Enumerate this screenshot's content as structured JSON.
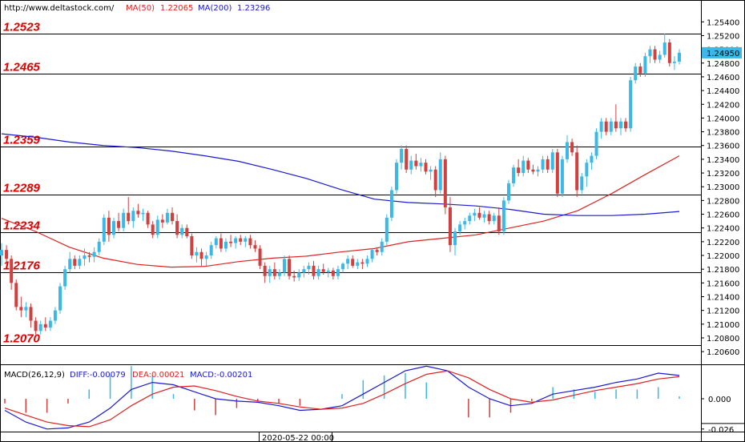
{
  "header": {
    "site": "http://www.deltastock.com/",
    "ma50_label": "MA(50)",
    "ma50_value": "1.22065",
    "ma200_label": "MA(200)",
    "ma200_value": "1.23296"
  },
  "macd_header": {
    "name": "MACD(26,12,9)",
    "diff": "DIFF:-0.00079",
    "dea": "DEA:0.00021",
    "macd": "MACD:-0.00201"
  },
  "colors": {
    "up": "#3cb8e8",
    "down": "#d04040",
    "ma50": "#e02020",
    "ma200": "#1a1ad0",
    "level_text": "#e00000",
    "price_tag": "#3cb8e8"
  },
  "footer": {
    "date_label": "2020-05-22 00:00"
  },
  "chart_data": [
    {
      "type": "candlestick",
      "ylim": [
        1.2045,
        1.2552
      ],
      "yticks": [
        "1.25400",
        "1.25200",
        "1.25000",
        "1.24800",
        "1.24600",
        "1.24400",
        "1.24200",
        "1.24000",
        "1.23800",
        "1.23600",
        "1.23400",
        "1.23200",
        "1.23000",
        "1.22800",
        "1.22600",
        "1.22400",
        "1.22200",
        "1.22000",
        "1.21800",
        "1.21600",
        "1.21400",
        "1.21200",
        "1.21000",
        "1.20800",
        "1.20600"
      ],
      "last_price": "1.24950",
      "levels": [
        "1.2523",
        "1.2465",
        "1.2359",
        "1.2289",
        "1.2234",
        "1.2176",
        "1.2070"
      ],
      "series": [
        {
          "name": "MA(50)",
          "values": [
            1.2254,
            1.2235,
            1.2212,
            1.2196,
            1.2187,
            1.2183,
            1.2184,
            1.2191,
            1.2196,
            1.2199,
            1.2205,
            1.221,
            1.222,
            1.2225,
            1.223,
            1.224,
            1.225,
            1.2265,
            1.229,
            1.2318,
            1.2345
          ]
        },
        {
          "name": "MA(200)",
          "values": [
            1.2377,
            1.2372,
            1.2365,
            1.236,
            1.2357,
            1.2352,
            1.2345,
            1.2337,
            1.2325,
            1.2312,
            1.2296,
            1.2282,
            1.2277,
            1.2275,
            1.2272,
            1.2267,
            1.226,
            1.2258,
            1.2258,
            1.226,
            1.2264
          ]
        }
      ],
      "ohlc": [
        [
          1.22,
          1.2218,
          1.2185,
          1.2208
        ],
        [
          1.2208,
          1.2215,
          1.219,
          1.2195
        ],
        [
          1.2195,
          1.22,
          1.215,
          1.216
        ],
        [
          1.216,
          1.2165,
          1.212,
          1.2125
        ],
        [
          1.2125,
          1.214,
          1.211,
          1.212
        ],
        [
          1.212,
          1.2132,
          1.211,
          1.2125
        ],
        [
          1.2125,
          1.213,
          1.2095,
          1.2105
        ],
        [
          1.2105,
          1.211,
          1.2085,
          1.209
        ],
        [
          1.209,
          1.2105,
          1.2085,
          1.21
        ],
        [
          1.21,
          1.211,
          1.209,
          1.2095
        ],
        [
          1.2095,
          1.211,
          1.209,
          1.2105
        ],
        [
          1.2105,
          1.2125,
          1.21,
          1.212
        ],
        [
          1.212,
          1.216,
          1.2115,
          1.2155
        ],
        [
          1.2155,
          1.2185,
          1.215,
          1.218
        ],
        [
          1.218,
          1.2205,
          1.2175,
          1.2195
        ],
        [
          1.2195,
          1.22,
          1.218,
          1.2185
        ],
        [
          1.2185,
          1.22,
          1.218,
          1.2195
        ],
        [
          1.2195,
          1.221,
          1.2185,
          1.22
        ],
        [
          1.22,
          1.2205,
          1.219,
          1.2198
        ],
        [
          1.2198,
          1.2212,
          1.219,
          1.2205
        ],
        [
          1.2205,
          1.2225,
          1.22,
          1.222
        ],
        [
          1.222,
          1.226,
          1.2215,
          1.2255
        ],
        [
          1.2255,
          1.2265,
          1.222,
          1.223
        ],
        [
          1.223,
          1.2255,
          1.2225,
          1.225
        ],
        [
          1.225,
          1.2262,
          1.2235,
          1.224
        ],
        [
          1.224,
          1.2268,
          1.2235,
          1.2262
        ],
        [
          1.2262,
          1.2285,
          1.2245,
          1.225
        ],
        [
          1.225,
          1.227,
          1.224,
          1.2265
        ],
        [
          1.2265,
          1.2275,
          1.2255,
          1.226
        ],
        [
          1.226,
          1.2268,
          1.225,
          1.2262
        ],
        [
          1.2262,
          1.2265,
          1.224,
          1.2245
        ],
        [
          1.2245,
          1.225,
          1.2225,
          1.223
        ],
        [
          1.223,
          1.2258,
          1.2225,
          1.2252
        ],
        [
          1.2252,
          1.226,
          1.224,
          1.2248
        ],
        [
          1.2248,
          1.2268,
          1.2245,
          1.2262
        ],
        [
          1.2262,
          1.227,
          1.2245,
          1.225
        ],
        [
          1.225,
          1.226,
          1.2225,
          1.223
        ],
        [
          1.223,
          1.2245,
          1.2225,
          1.224
        ],
        [
          1.224,
          1.2245,
          1.2225,
          1.2228
        ],
        [
          1.2228,
          1.2232,
          1.2195,
          1.22
        ],
        [
          1.22,
          1.2212,
          1.219,
          1.2205
        ],
        [
          1.2205,
          1.221,
          1.2185,
          1.2195
        ],
        [
          1.2195,
          1.2205,
          1.2185,
          1.22
        ],
        [
          1.22,
          1.222,
          1.2195,
          1.2215
        ],
        [
          1.2215,
          1.2228,
          1.221,
          1.2225
        ],
        [
          1.2225,
          1.2232,
          1.2205,
          1.221
        ],
        [
          1.221,
          1.2225,
          1.2205,
          1.222
        ],
        [
          1.222,
          1.223,
          1.2212,
          1.2218
        ],
        [
          1.2218,
          1.2228,
          1.221,
          1.2225
        ],
        [
          1.2225,
          1.223,
          1.2215,
          1.222
        ],
        [
          1.222,
          1.2228,
          1.2212,
          1.2225
        ],
        [
          1.2225,
          1.223,
          1.221,
          1.2215
        ],
        [
          1.2215,
          1.2222,
          1.2205,
          1.221
        ],
        [
          1.221,
          1.2215,
          1.218,
          1.2185
        ],
        [
          1.2185,
          1.219,
          1.216,
          1.217
        ],
        [
          1.217,
          1.2185,
          1.216,
          1.218
        ],
        [
          1.218,
          1.219,
          1.2165,
          1.217
        ],
        [
          1.217,
          1.218,
          1.2165,
          1.2175
        ],
        [
          1.2175,
          1.22,
          1.217,
          1.2195
        ],
        [
          1.2195,
          1.22,
          1.2165,
          1.217
        ],
        [
          1.217,
          1.2178,
          1.2162,
          1.2168
        ],
        [
          1.2168,
          1.218,
          1.2163,
          1.2175
        ],
        [
          1.2175,
          1.2185,
          1.2168,
          1.218
        ],
        [
          1.218,
          1.219,
          1.2172,
          1.2185
        ],
        [
          1.2185,
          1.2192,
          1.2165,
          1.217
        ],
        [
          1.217,
          1.2185,
          1.2165,
          1.218
        ],
        [
          1.218,
          1.2188,
          1.2172,
          1.2176
        ],
        [
          1.2176,
          1.2182,
          1.2168,
          1.2178
        ],
        [
          1.2178,
          1.2182,
          1.2165,
          1.217
        ],
        [
          1.217,
          1.2185,
          1.2165,
          1.218
        ],
        [
          1.218,
          1.219,
          1.2175,
          1.2188
        ],
        [
          1.2188,
          1.22,
          1.218,
          1.2195
        ],
        [
          1.2195,
          1.22,
          1.2182,
          1.2185
        ],
        [
          1.2185,
          1.2195,
          1.218,
          1.219
        ],
        [
          1.219,
          1.2195,
          1.218,
          1.2188
        ],
        [
          1.2188,
          1.22,
          1.2183,
          1.2195
        ],
        [
          1.2195,
          1.221,
          1.219,
          1.2208
        ],
        [
          1.2208,
          1.2212,
          1.22,
          1.2205
        ],
        [
          1.2205,
          1.2225,
          1.22,
          1.222
        ],
        [
          1.222,
          1.226,
          1.2215,
          1.2255
        ],
        [
          1.2255,
          1.23,
          1.225,
          1.2295
        ],
        [
          1.2295,
          1.234,
          1.229,
          1.2335
        ],
        [
          1.2335,
          1.236,
          1.2325,
          1.2355
        ],
        [
          1.2355,
          1.236,
          1.232,
          1.2325
        ],
        [
          1.2325,
          1.2345,
          1.2318,
          1.2338
        ],
        [
          1.2338,
          1.2348,
          1.2325,
          1.233
        ],
        [
          1.233,
          1.2342,
          1.2322,
          1.2335
        ],
        [
          1.2335,
          1.234,
          1.2318,
          1.2322
        ],
        [
          1.2322,
          1.233,
          1.231,
          1.2325
        ],
        [
          1.2325,
          1.233,
          1.2285,
          1.2295
        ],
        [
          1.2295,
          1.235,
          1.229,
          1.234
        ],
        [
          1.234,
          1.2345,
          1.226,
          1.227
        ],
        [
          1.227,
          1.2285,
          1.2205,
          1.2215
        ],
        [
          1.2215,
          1.224,
          1.22,
          1.2235
        ],
        [
          1.2235,
          1.225,
          1.223,
          1.2245
        ],
        [
          1.2245,
          1.2255,
          1.2238,
          1.225
        ],
        [
          1.225,
          1.2262,
          1.2245,
          1.2258
        ],
        [
          1.2258,
          1.2268,
          1.225,
          1.2262
        ],
        [
          1.2262,
          1.227,
          1.2252,
          1.2255
        ],
        [
          1.2255,
          1.2265,
          1.2248,
          1.226
        ],
        [
          1.226,
          1.2265,
          1.2245,
          1.225
        ],
        [
          1.225,
          1.2262,
          1.2245,
          1.2258
        ],
        [
          1.2258,
          1.227,
          1.223,
          1.2235
        ],
        [
          1.2235,
          1.2285,
          1.223,
          1.228
        ],
        [
          1.228,
          1.231,
          1.2275,
          1.2305
        ],
        [
          1.2305,
          1.2332,
          1.23,
          1.2328
        ],
        [
          1.2328,
          1.234,
          1.2315,
          1.232
        ],
        [
          1.232,
          1.2345,
          1.2315,
          1.2338
        ],
        [
          1.2338,
          1.2342,
          1.232,
          1.2325
        ],
        [
          1.2325,
          1.2332,
          1.2318,
          1.2322
        ],
        [
          1.2322,
          1.233,
          1.2315,
          1.2325
        ],
        [
          1.2325,
          1.2345,
          1.232,
          1.234
        ],
        [
          1.234,
          1.2345,
          1.232,
          1.2325
        ],
        [
          1.2325,
          1.2355,
          1.232,
          1.235
        ],
        [
          1.235,
          1.2355,
          1.2285,
          1.229
        ],
        [
          1.229,
          1.2345,
          1.2285,
          1.234
        ],
        [
          1.234,
          1.2375,
          1.2335,
          1.2365
        ],
        [
          1.2365,
          1.237,
          1.2345,
          1.235
        ],
        [
          1.235,
          1.236,
          1.2285,
          1.2295
        ],
        [
          1.2295,
          1.232,
          1.229,
          1.2315
        ],
        [
          1.2315,
          1.234,
          1.23,
          1.2335
        ],
        [
          1.2335,
          1.235,
          1.2325,
          1.2345
        ],
        [
          1.2345,
          1.2385,
          1.234,
          1.238
        ],
        [
          1.238,
          1.24,
          1.237,
          1.2395
        ],
        [
          1.2395,
          1.24,
          1.2375,
          1.238
        ],
        [
          1.238,
          1.24,
          1.2375,
          1.2395
        ],
        [
          1.2395,
          1.242,
          1.238,
          1.2385
        ],
        [
          1.2385,
          1.24,
          1.2375,
          1.2395
        ],
        [
          1.2395,
          1.24,
          1.238,
          1.2385
        ],
        [
          1.2385,
          1.246,
          1.238,
          1.2455
        ],
        [
          1.2455,
          1.248,
          1.245,
          1.2475
        ],
        [
          1.2475,
          1.248,
          1.246,
          1.2465
        ],
        [
          1.2465,
          1.2495,
          1.246,
          1.249
        ],
        [
          1.249,
          1.2505,
          1.248,
          1.25
        ],
        [
          1.25,
          1.2505,
          1.248,
          1.2485
        ],
        [
          1.2485,
          1.2498,
          1.248,
          1.2492
        ],
        [
          1.2492,
          1.2523,
          1.2488,
          1.251
        ],
        [
          1.251,
          1.2515,
          1.2475,
          1.248
        ],
        [
          1.248,
          1.249,
          1.247,
          1.2482
        ],
        [
          1.2482,
          1.25,
          1.2478,
          1.2495
        ]
      ]
    },
    {
      "type": "line",
      "title": "MACD(26,12,9)",
      "ylim": [
        -0.0275,
        0.0275
      ],
      "yticks": [
        "0.000",
        "-0.026"
      ],
      "series": [
        {
          "name": "DIFF",
          "values": [
            -0.01,
            -0.02,
            -0.026,
            -0.025,
            -0.02,
            -0.008,
            0.008,
            0.014,
            0.012,
            0.006,
            0.0,
            -0.002,
            -0.003,
            -0.006,
            -0.01,
            -0.009,
            -0.006,
            0.004,
            0.014,
            0.024,
            0.028,
            0.024,
            0.01,
            0.0,
            -0.006,
            -0.004,
            0.004,
            0.007,
            0.01,
            0.014,
            0.017,
            0.022,
            0.02
          ]
        },
        {
          "name": "DEA",
          "values": [
            -0.008,
            -0.014,
            -0.02,
            -0.023,
            -0.024,
            -0.018,
            -0.006,
            0.004,
            0.01,
            0.011,
            0.007,
            0.002,
            -0.002,
            -0.004,
            -0.007,
            -0.009,
            -0.008,
            -0.004,
            0.004,
            0.013,
            0.021,
            0.024,
            0.018,
            0.008,
            0.0,
            -0.003,
            -0.001,
            0.003,
            0.007,
            0.01,
            0.013,
            0.017,
            0.019
          ]
        }
      ],
      "histogram": [
        -0.004,
        -0.012,
        -0.012,
        -0.004,
        0.008,
        0.02,
        0.028,
        0.02,
        0.004,
        -0.01,
        -0.014,
        -0.008,
        -0.002,
        -0.004,
        -0.006,
        0.0,
        0.004,
        0.016,
        0.02,
        0.022,
        0.014,
        0.0,
        -0.016,
        -0.016,
        -0.012,
        -0.002,
        0.01,
        0.008,
        0.006,
        0.008,
        0.008,
        0.01,
        0.002
      ]
    }
  ]
}
